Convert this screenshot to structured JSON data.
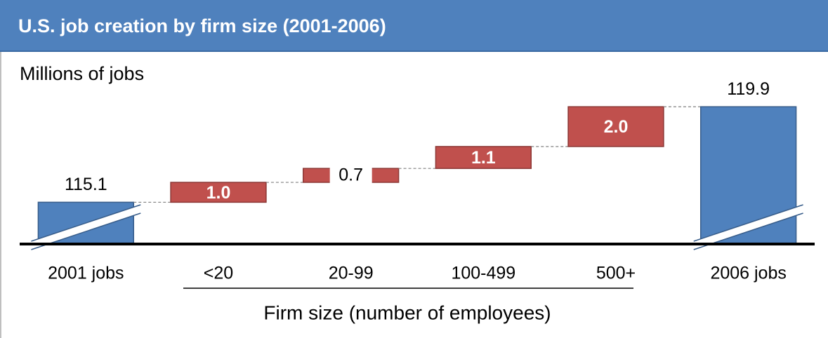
{
  "chart_data": {
    "type": "waterfall",
    "title": "U.S. job creation by firm size (2001-2006)",
    "y_label": "Millions of jobs",
    "x_label": "Firm size (number of employees)",
    "categories": [
      "2001 jobs",
      "<20",
      "20-99",
      "100-499",
      "500+",
      "2006 jobs"
    ],
    "values": [
      115.1,
      1.0,
      0.7,
      1.1,
      2.0,
      119.9
    ],
    "value_labels": [
      "115.1",
      "1.0",
      "0.7",
      "1.1",
      "2.0",
      "119.9"
    ],
    "measure": [
      "absolute",
      "relative",
      "relative",
      "relative",
      "relative",
      "absolute"
    ],
    "total_color": "#4f81bd",
    "increment_color": "#c0504d",
    "ylim": [
      113,
      121
    ],
    "broken_axis": true
  }
}
